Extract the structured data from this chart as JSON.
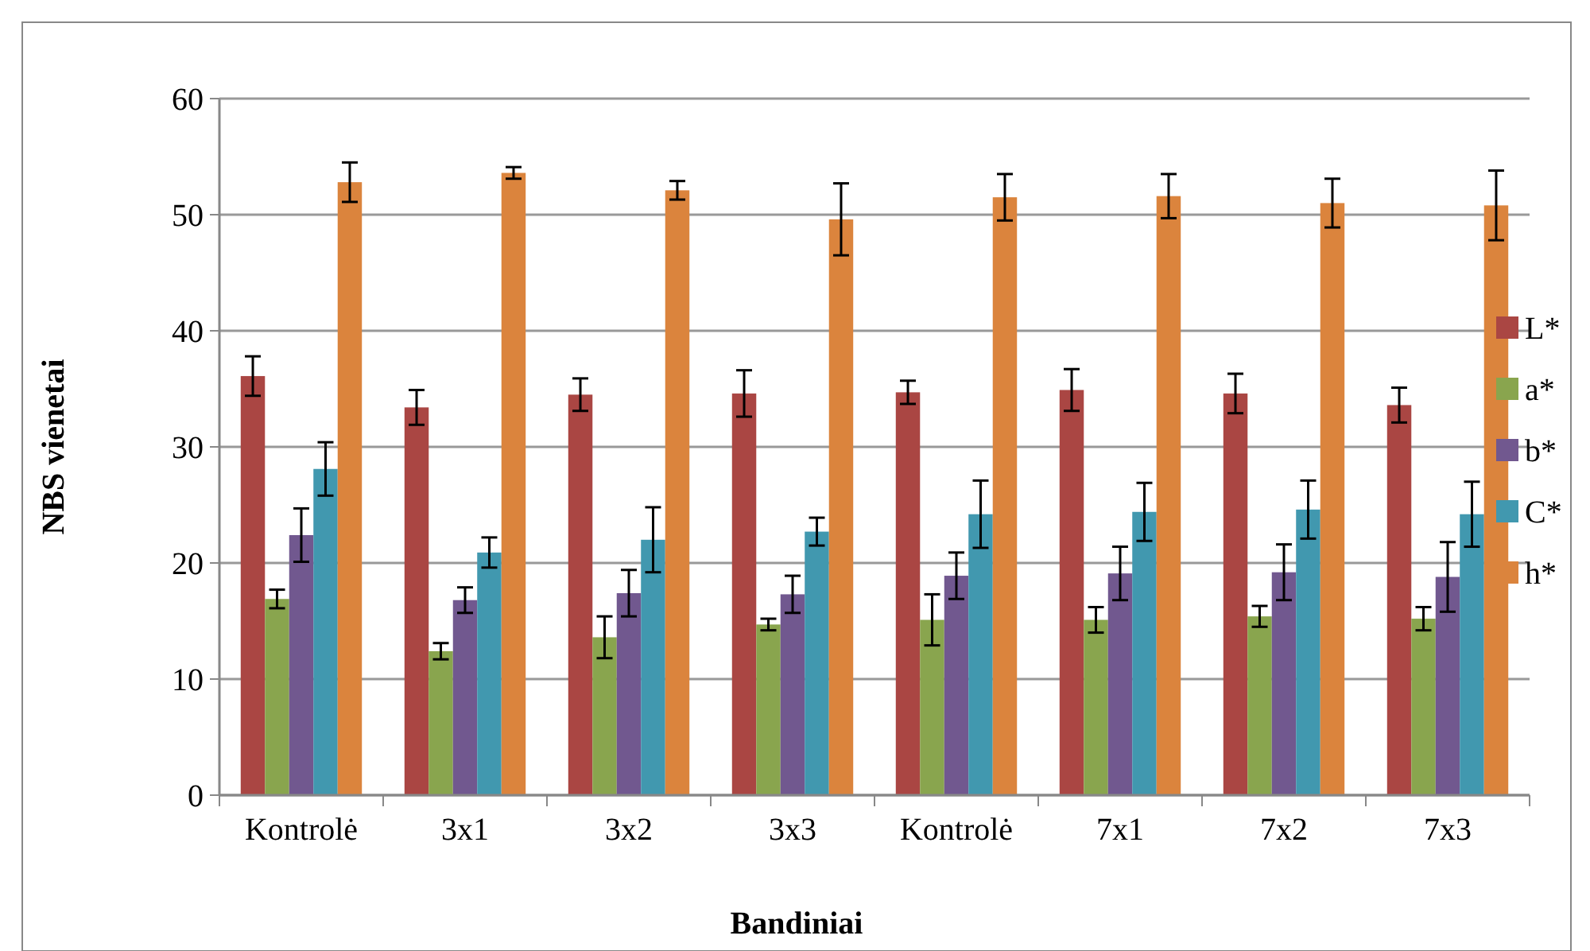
{
  "chart_data": {
    "type": "bar",
    "xlabel": "Bandiniai",
    "ylabel": "NBS vienetai",
    "categories": [
      "Kontrolė",
      "3x1",
      "3x2",
      "3x3",
      "Kontrolė",
      "7x1",
      "7x2",
      "7x3"
    ],
    "series": [
      {
        "name": "L*",
        "color": "#aa4643",
        "values": [
          36.1,
          33.4,
          34.5,
          34.6,
          34.7,
          34.9,
          34.6,
          33.6
        ],
        "errors": [
          1.7,
          1.5,
          1.4,
          2,
          1,
          1.8,
          1.7,
          1.5
        ]
      },
      {
        "name": "a*",
        "color": "#89a54e",
        "values": [
          16.9,
          12.4,
          13.6,
          14.7,
          15.1,
          15.1,
          15.4,
          15.2
        ],
        "errors": [
          0.8,
          0.7,
          1.8,
          0.5,
          2.2,
          1.1,
          0.9,
          1
        ]
      },
      {
        "name": "b*",
        "color": "#71588f",
        "values": [
          22.4,
          16.8,
          17.4,
          17.3,
          18.9,
          19.1,
          19.2,
          18.8
        ],
        "errors": [
          2.3,
          1.1,
          2,
          1.6,
          2,
          2.3,
          2.4,
          3
        ]
      },
      {
        "name": "C*",
        "color": "#4198af",
        "values": [
          28.1,
          20.9,
          22,
          22.7,
          24.2,
          24.4,
          24.6,
          24.2
        ],
        "errors": [
          2.3,
          1.3,
          2.8,
          1.2,
          2.9,
          2.5,
          2.5,
          2.8
        ]
      },
      {
        "name": "h*",
        "color": "#db843d",
        "values": [
          52.8,
          53.6,
          52.1,
          49.6,
          51.5,
          51.6,
          51,
          50.8
        ],
        "errors": [
          1.7,
          0.5,
          0.8,
          3.1,
          2,
          1.9,
          2.1,
          3
        ]
      }
    ],
    "ylim": [
      0,
      60
    ],
    "yticks": [
      0,
      10,
      20,
      30,
      40,
      50,
      60
    ],
    "grid": "y",
    "legend": "right"
  }
}
